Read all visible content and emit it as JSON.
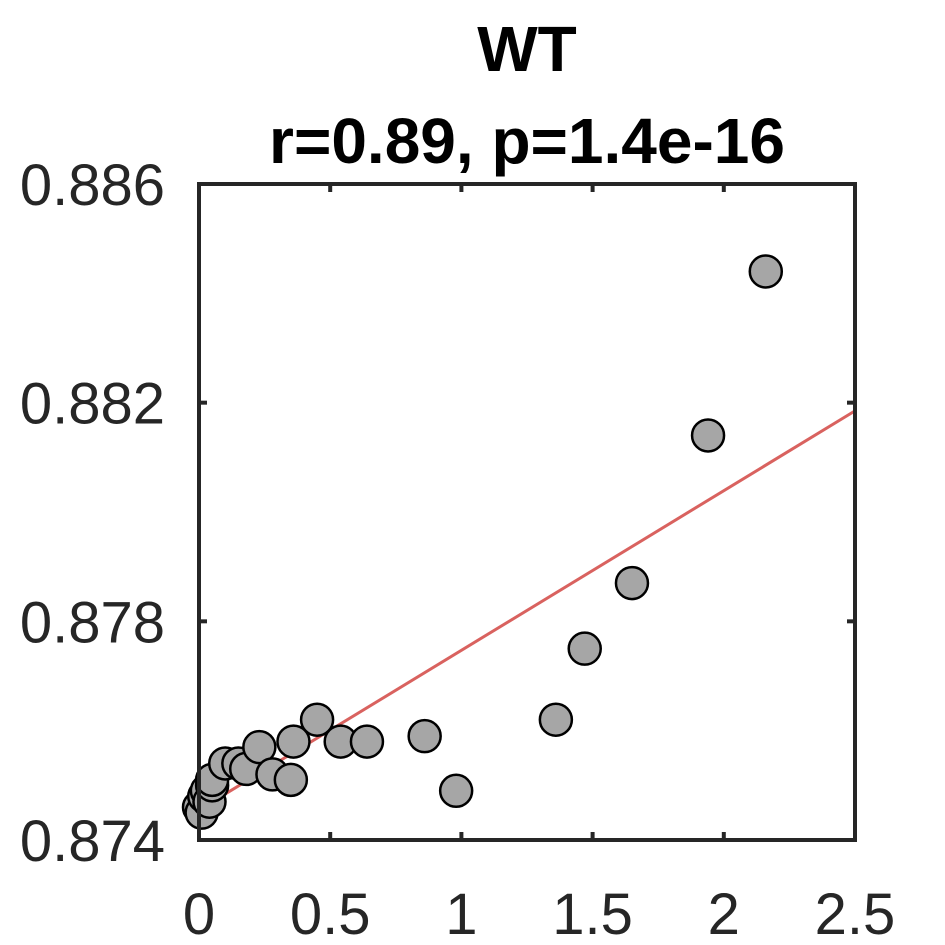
{
  "chart_data": {
    "type": "scatter",
    "title": "WT",
    "subtitle": "r=0.89, p=1.4e-16",
    "xlabel": "",
    "ylabel": "",
    "xlim": [
      0,
      2.5
    ],
    "ylim": [
      0.874,
      0.886
    ],
    "xticks": [
      0,
      0.5,
      1,
      1.5,
      2,
      2.5
    ],
    "xtick_labels": [
      "0",
      "0.5",
      "1",
      "1.5",
      "2",
      "2.5"
    ],
    "yticks": [
      0.874,
      0.878,
      0.882,
      0.886
    ],
    "ytick_labels": [
      "0.874",
      "0.878",
      "0.882",
      "0.886"
    ],
    "grid": false,
    "series": [
      {
        "x": [
          0.0,
          0.01,
          0.02,
          0.03,
          0.04,
          0.05,
          0.05,
          0.1,
          0.15,
          0.18,
          0.23,
          0.28,
          0.35,
          0.36,
          0.45,
          0.54,
          0.64,
          0.86,
          0.98,
          1.36,
          1.47,
          1.65,
          1.94,
          2.16
        ],
        "y": [
          0.8746,
          0.8745,
          0.8748,
          0.8749,
          0.8747,
          0.875,
          0.8751,
          0.8754,
          0.8754,
          0.8753,
          0.8757,
          0.8752,
          0.8751,
          0.8758,
          0.8762,
          0.8758,
          0.8758,
          0.8759,
          0.8749,
          0.8762,
          0.8775,
          0.8787,
          0.8814,
          0.8844
        ],
        "marker_color": "#a6a6a6",
        "edge_color": "#000000"
      }
    ],
    "fit_line": {
      "x": [
        0,
        2.5
      ],
      "y": [
        0.87455,
        0.88185
      ],
      "color": "#d9625f"
    }
  }
}
